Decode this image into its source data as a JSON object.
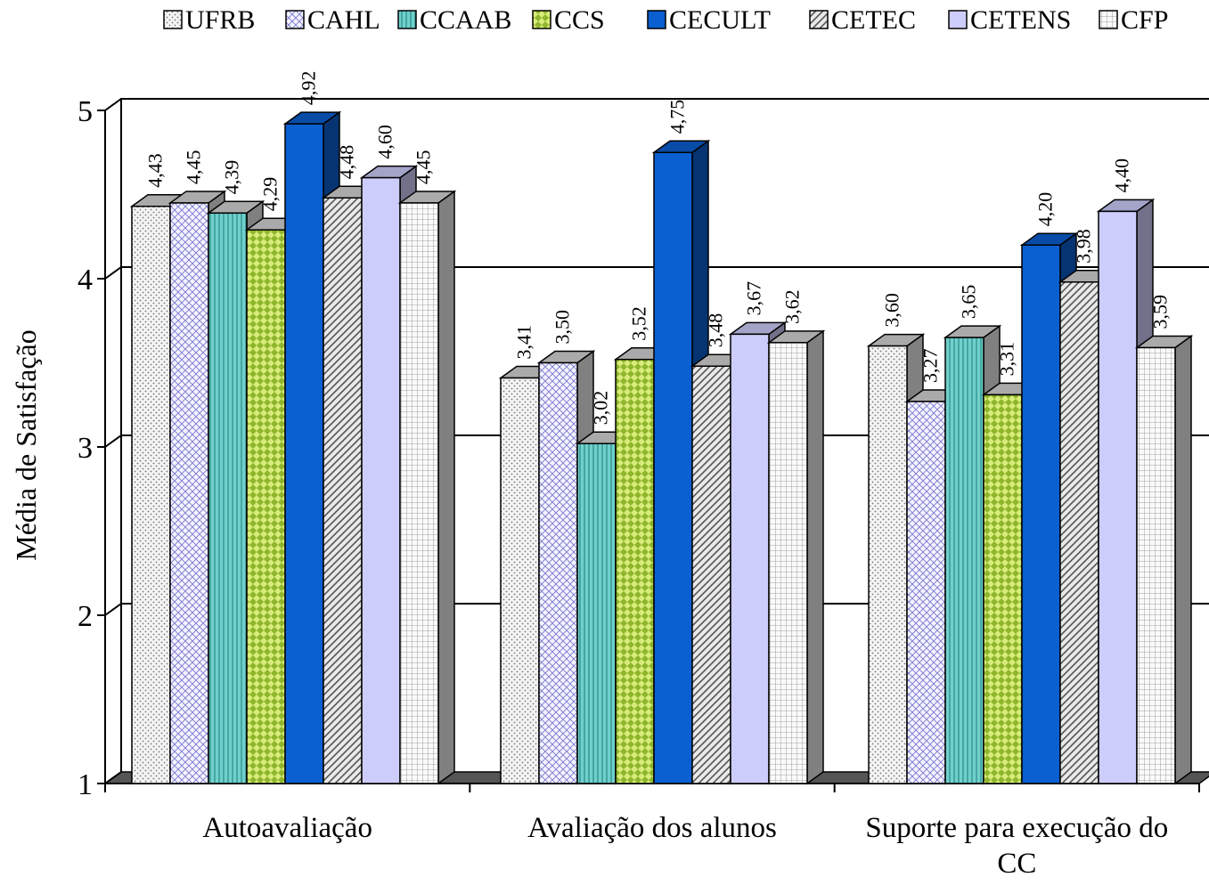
{
  "chart_data": {
    "type": "bar",
    "ylabel": "Média de Satisfação",
    "xlabel": "",
    "ylim": [
      1,
      5
    ],
    "yticks": [
      "1",
      "2",
      "3",
      "4",
      "5"
    ],
    "grid": true,
    "legend_position": "top",
    "categories": [
      [
        "Autoavaliação"
      ],
      [
        "Avaliação dos alunos"
      ],
      [
        "Suporte para execução do",
        "CC"
      ]
    ],
    "series": [
      {
        "name": "UFRB",
        "values": [
          4.43,
          3.41,
          3.6
        ],
        "labels": [
          "4,43",
          "3,41",
          "3,60"
        ],
        "color": "#eeeeee",
        "pattern": "dots"
      },
      {
        "name": "CAHL",
        "values": [
          4.45,
          3.5,
          3.27
        ],
        "labels": [
          "4,45",
          "3,50",
          "3,27"
        ],
        "color": "#ecebfb",
        "pattern": "crosshatch"
      },
      {
        "name": "CCAAB",
        "values": [
          4.39,
          3.02,
          3.65
        ],
        "labels": [
          "4,39",
          "3,02",
          "3,65"
        ],
        "color": "#5cc4c0",
        "pattern": "vlines"
      },
      {
        "name": "CCS",
        "values": [
          4.29,
          3.52,
          3.31
        ],
        "labels": [
          "4,29",
          "3,52",
          "3,31"
        ],
        "color": "#c6e05a",
        "pattern": "diamonds"
      },
      {
        "name": "CECULT",
        "values": [
          4.92,
          4.75,
          4.2
        ],
        "labels": [
          "4,92",
          "4,75",
          "4,20"
        ],
        "color": "#0a5fd1",
        "pattern": "solid"
      },
      {
        "name": "CETEC",
        "values": [
          4.48,
          3.48,
          3.98
        ],
        "labels": [
          "4,48",
          "3,48",
          "3,98"
        ],
        "color": "#e4e4e4",
        "pattern": "diag"
      },
      {
        "name": "CETENS",
        "values": [
          4.6,
          3.67,
          4.4
        ],
        "labels": [
          "4,60",
          "3,67",
          "4,40"
        ],
        "color": "#cdcdfb",
        "pattern": "solid"
      },
      {
        "name": "CFP",
        "values": [
          4.45,
          3.62,
          3.59
        ],
        "labels": [
          "4,45",
          "3,62",
          "3,59"
        ],
        "color": "#f4f4f4",
        "pattern": "grid"
      }
    ]
  }
}
